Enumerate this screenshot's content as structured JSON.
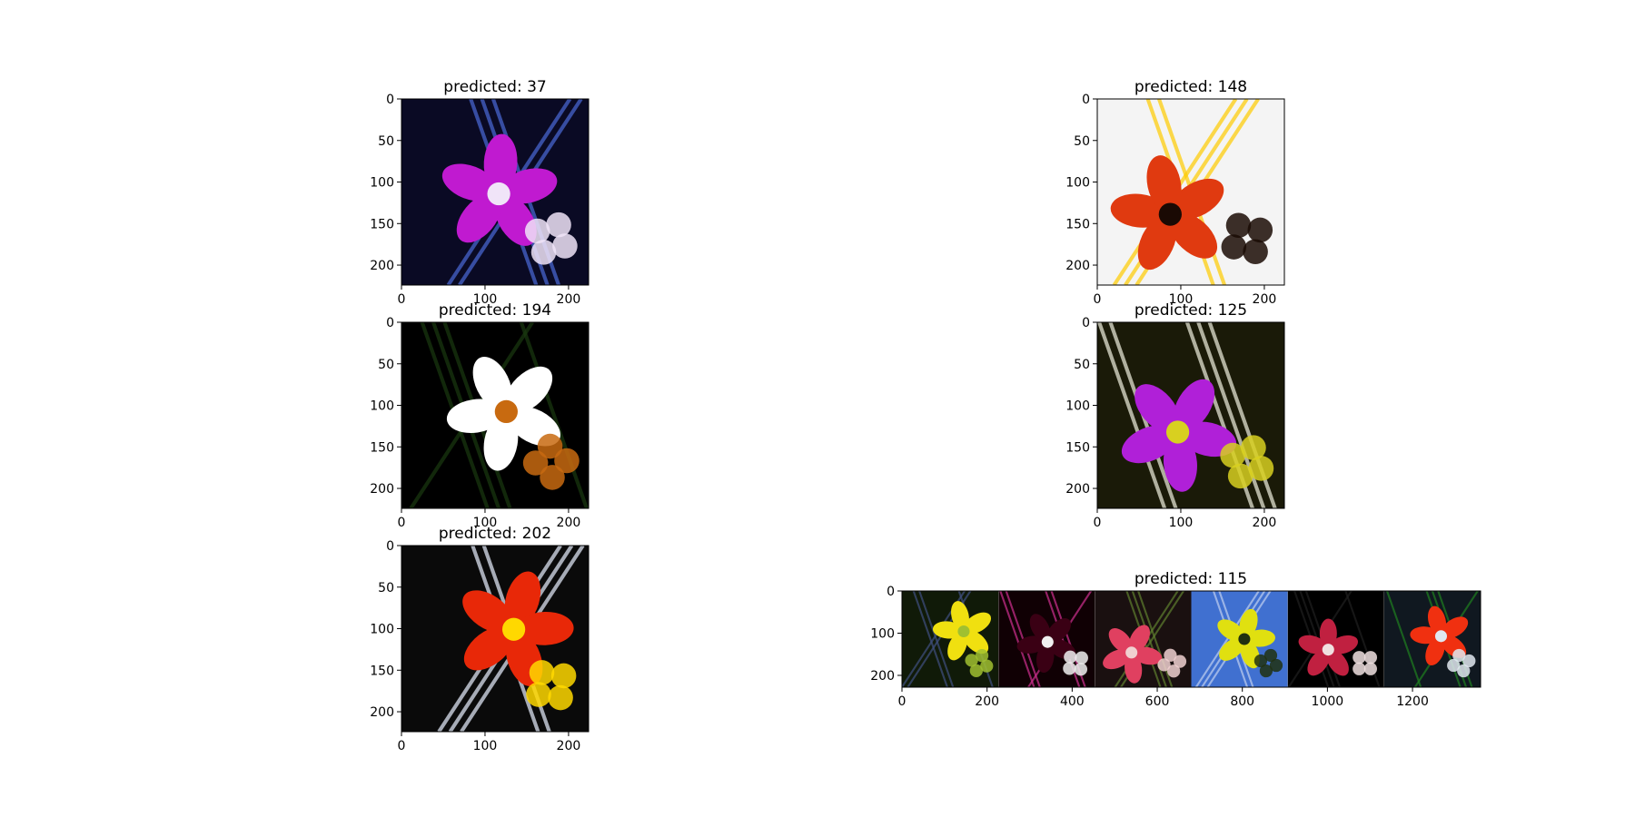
{
  "figure": {
    "background": "#ffffff"
  },
  "chart_data": [
    {
      "type": "image",
      "title": "predicted: 37",
      "xlim": [
        0,
        224
      ],
      "ylim": [
        224,
        0
      ],
      "xticks": [
        0,
        100,
        200
      ],
      "yticks": [
        0,
        50,
        100,
        150,
        200
      ],
      "content": "orchid-image",
      "palette": {
        "base": "#0a0a24",
        "primary": "#c01ad0",
        "secondary": "#f0e4f8",
        "accent": "#4a6ad8"
      }
    },
    {
      "type": "image",
      "title": "predicted: 148",
      "xlim": [
        0,
        224
      ],
      "ylim": [
        224,
        0
      ],
      "xticks": [
        0,
        100,
        200
      ],
      "yticks": [
        0,
        50,
        100,
        150,
        200
      ],
      "content": "orchid-image",
      "palette": {
        "base": "#f4f4f4",
        "primary": "#e03a10",
        "secondary": "#1a0a04",
        "accent": "#ffcc00"
      }
    },
    {
      "type": "image",
      "title": "predicted: 194",
      "xlim": [
        0,
        224
      ],
      "ylim": [
        224,
        0
      ],
      "xticks": [
        0,
        100,
        200
      ],
      "yticks": [
        0,
        50,
        100,
        150,
        200
      ],
      "content": "orchid-image",
      "palette": {
        "base": "#000000",
        "primary": "#ffffff",
        "secondary": "#c86a10",
        "accent": "#1a3a10"
      }
    },
    {
      "type": "image",
      "title": "predicted: 125",
      "xlim": [
        0,
        224
      ],
      "ylim": [
        224,
        0
      ],
      "xticks": [
        0,
        100,
        200
      ],
      "yticks": [
        0,
        50,
        100,
        150,
        200
      ],
      "content": "orchid-image",
      "palette": {
        "base": "#1a1a08",
        "primary": "#b020d8",
        "secondary": "#d8d020",
        "accent": "#f0f0e0"
      }
    },
    {
      "type": "image",
      "title": "predicted: 202",
      "xlim": [
        0,
        224
      ],
      "ylim": [
        224,
        0
      ],
      "xticks": [
        0,
        100,
        200
      ],
      "yticks": [
        0,
        50,
        100,
        150,
        200
      ],
      "content": "orchid-image",
      "palette": {
        "base": "#0a0a0a",
        "primary": "#e82808",
        "secondary": "#ffd800",
        "accent": "#e8f0ff"
      }
    },
    {
      "type": "image-grid",
      "title": "predicted: 115",
      "xlim": [
        0,
        1360
      ],
      "ylim": [
        228,
        0
      ],
      "xticks": [
        0,
        200,
        400,
        600,
        800,
        1000,
        1200
      ],
      "yticks": [
        0,
        100,
        200
      ],
      "tiles": [
        {
          "content": "orchid-image",
          "palette": {
            "base": "#101a08",
            "primary": "#f0e010",
            "secondary": "#a0c030",
            "accent": "#405080"
          }
        },
        {
          "content": "orchid-image",
          "palette": {
            "base": "#100004",
            "primary": "#3a0014",
            "secondary": "#f0f0f0",
            "accent": "#d03090"
          }
        },
        {
          "content": "orchid-image",
          "palette": {
            "base": "#1a1010",
            "primary": "#e04060",
            "secondary": "#f0d0d0",
            "accent": "#608030"
          }
        },
        {
          "content": "orchid-image",
          "palette": {
            "base": "#4070d0",
            "primary": "#e0e010",
            "secondary": "#203010",
            "accent": "#c0d0f0"
          }
        },
        {
          "content": "orchid-image",
          "palette": {
            "base": "#000000",
            "primary": "#c02040",
            "secondary": "#f0e0e0",
            "accent": "#202020"
          }
        },
        {
          "content": "orchid-image",
          "palette": {
            "base": "#101820",
            "primary": "#f03010",
            "secondary": "#e0e8f0",
            "accent": "#208020"
          }
        }
      ]
    }
  ]
}
